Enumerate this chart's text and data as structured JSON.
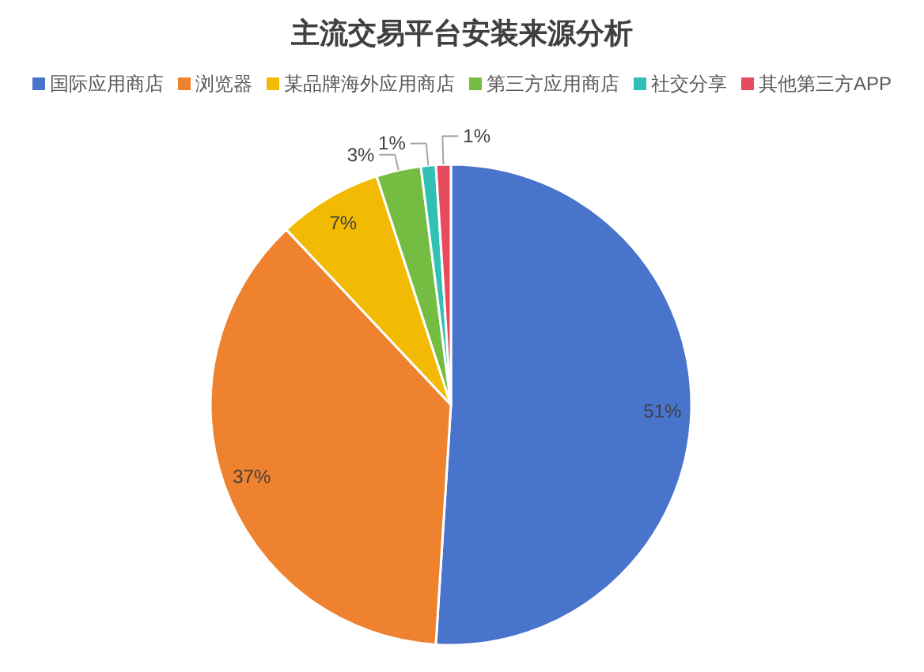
{
  "chart_data": {
    "type": "pie",
    "title": "主流交易平台安装来源分析",
    "categories": [
      "国际应用商店",
      "浏览器",
      "某品牌海外应用商店",
      "第三方应用商店",
      "社交分享",
      "其他第三方APP"
    ],
    "values": [
      51,
      37,
      7,
      3,
      1,
      1
    ],
    "colors": [
      "#4874cb",
      "#ee822f",
      "#f2ba02",
      "#75bd42",
      "#30c0b4",
      "#e54c5e"
    ],
    "value_labels": [
      "51%",
      "37%",
      "7%",
      "3%",
      "1%",
      "1%"
    ],
    "legend": "top"
  }
}
